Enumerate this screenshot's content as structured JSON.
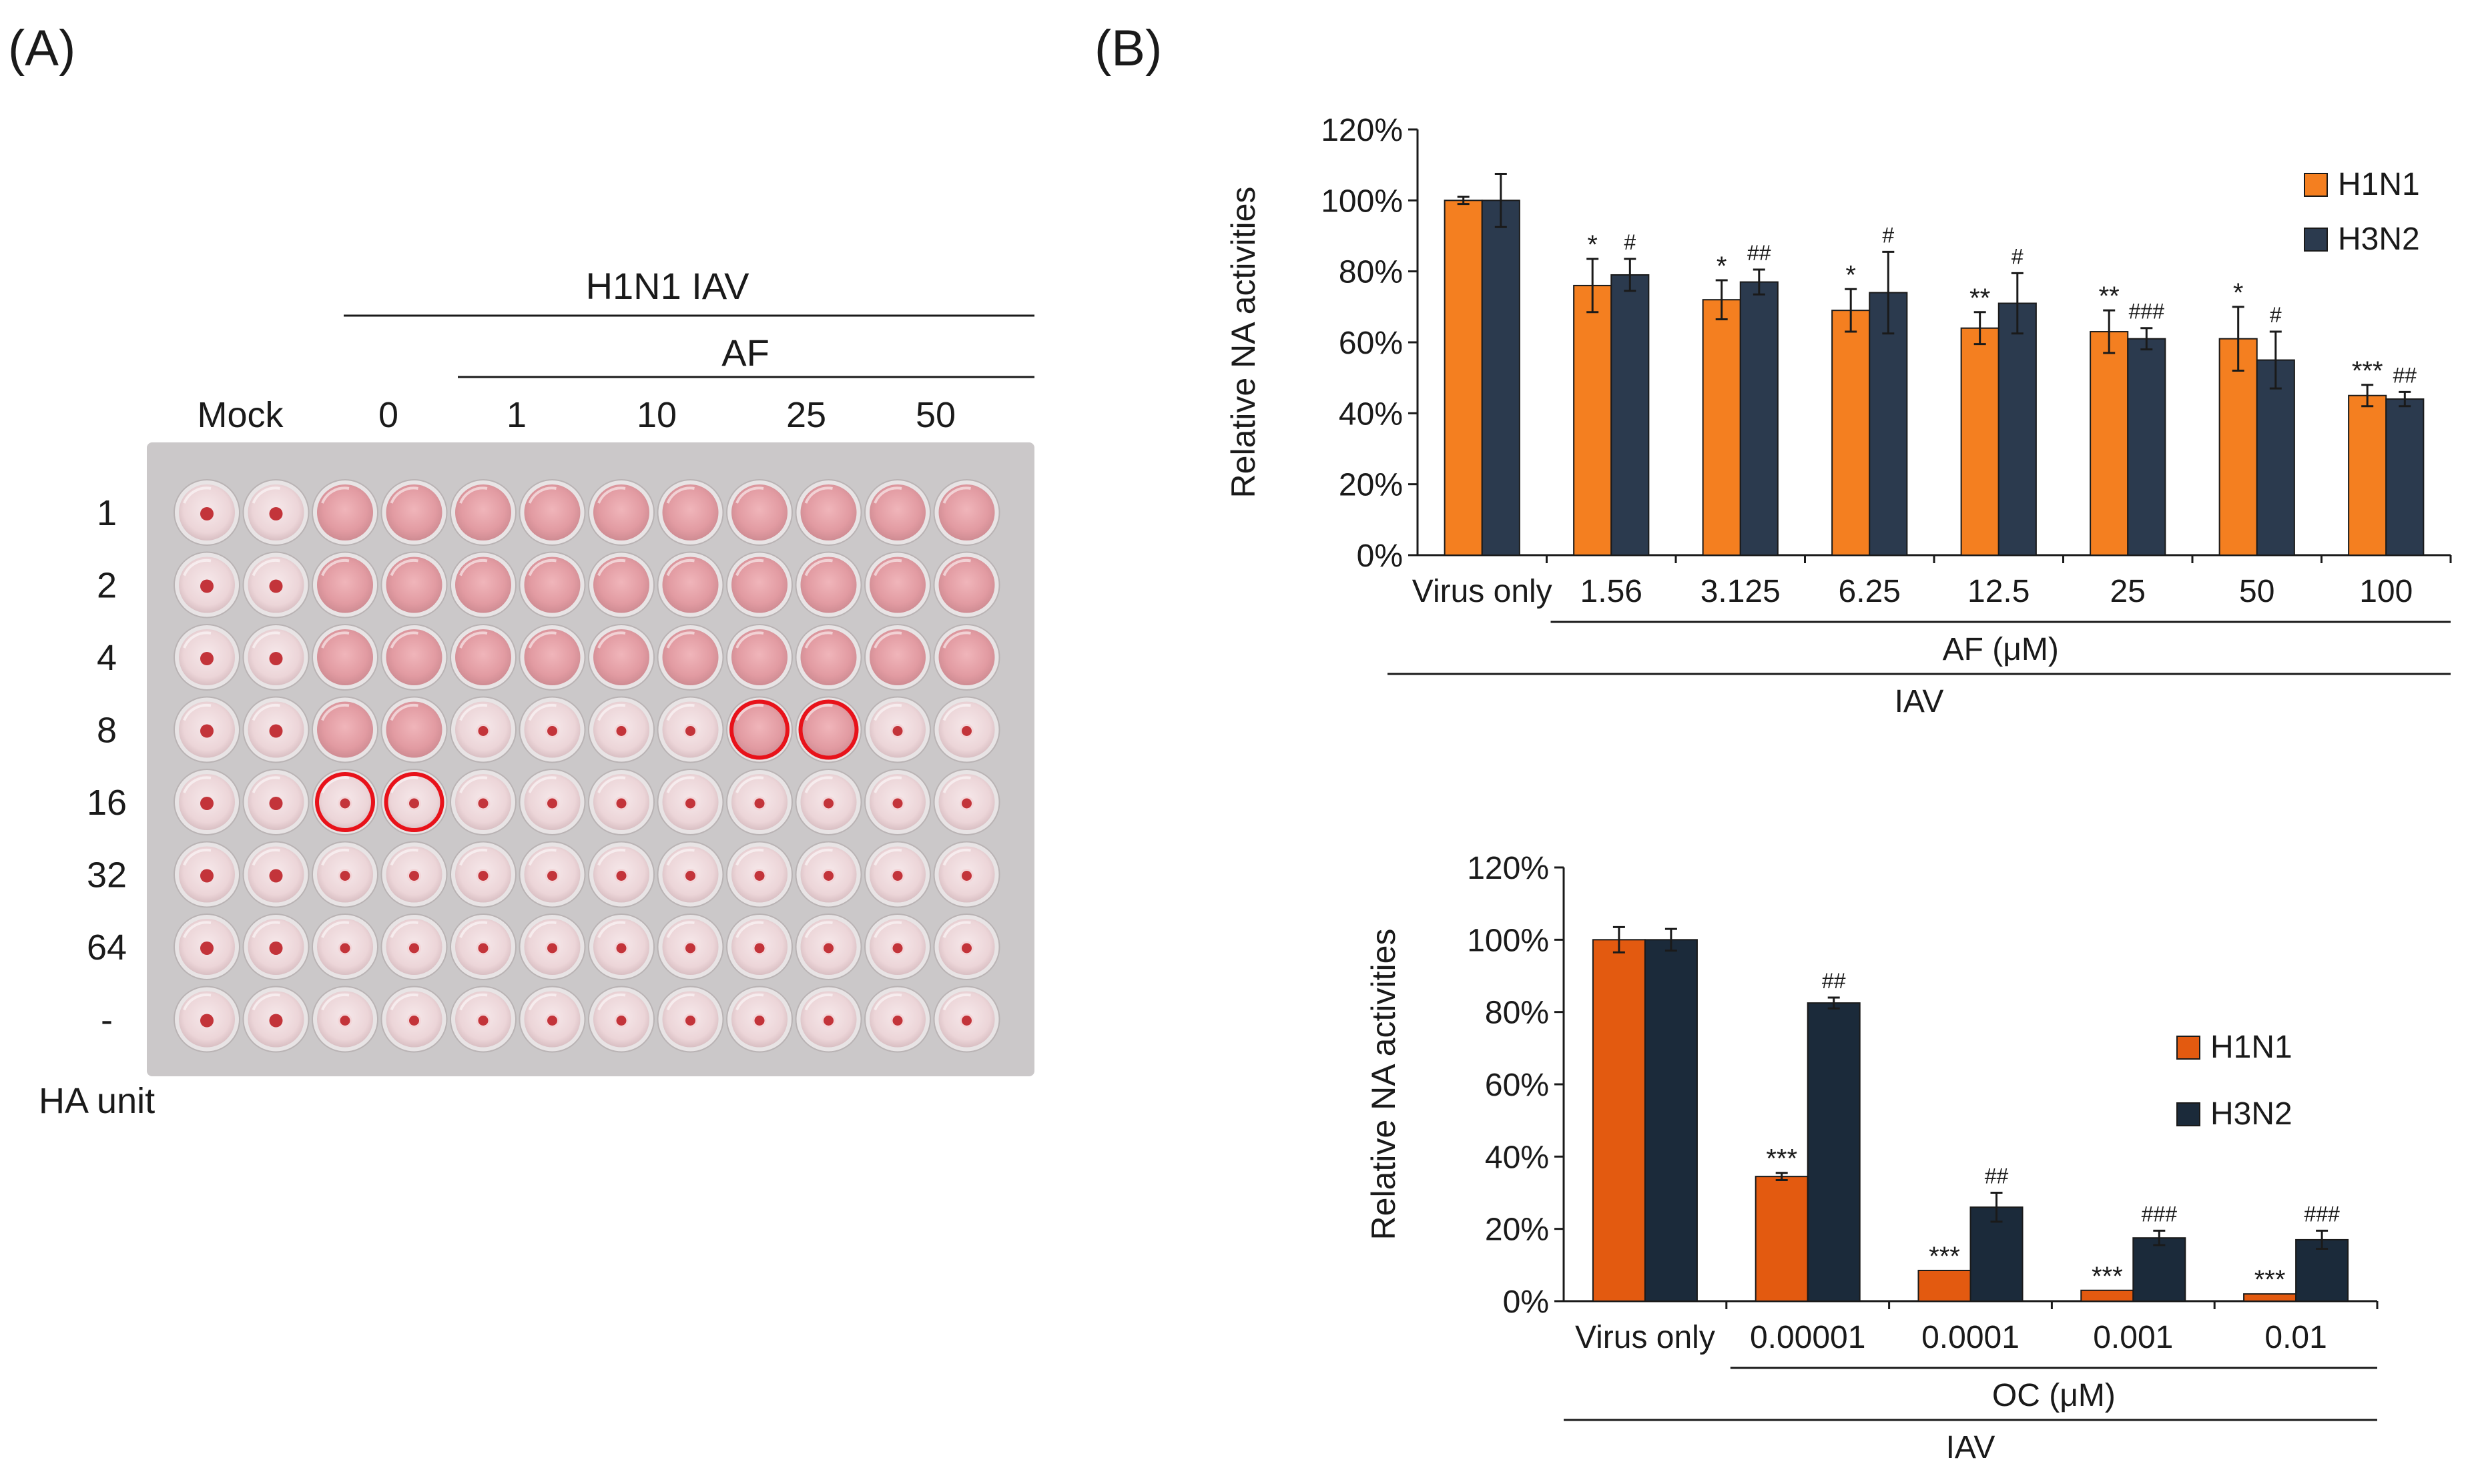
{
  "panel_a": {
    "label": "(A)",
    "group_title": "H1N1 IAV",
    "sub_group_title": "AF",
    "column_labels": [
      "Mock",
      "0",
      "1",
      "10",
      "25",
      "50"
    ],
    "row_labels": [
      "1",
      "2",
      "4",
      "8",
      "16",
      "32",
      "64",
      "-"
    ],
    "row_axis_label": "HA unit",
    "plate": {
      "rows": 8,
      "cols": 12,
      "colors": {
        "plate_bg": "#cbc8c9",
        "well_rim": "#e8e4e5",
        "pink_fill": "#e8a6ac",
        "clear_fill": "#f1dfe2",
        "button": "#c3343a",
        "highlight": "#e8121a"
      },
      "endpoint_row_per_column": [
        0,
        0,
        4,
        4,
        3,
        3,
        3,
        3,
        4,
        4,
        3,
        3
      ],
      "highlighted_wells": [
        {
          "row": 4,
          "col": 2
        },
        {
          "row": 4,
          "col": 3
        },
        {
          "row": 3,
          "col": 8
        },
        {
          "row": 3,
          "col": 9
        }
      ]
    }
  },
  "panel_b_label": "(B)",
  "chart_data": [
    {
      "type": "bar",
      "title": "",
      "ylabel": "Relative NA activities",
      "ylim": [
        0,
        120
      ],
      "yticks": [
        "0%",
        "20%",
        "40%",
        "60%",
        "80%",
        "100%",
        "120%"
      ],
      "categories": [
        "Virus only",
        "1.56",
        "3.125",
        "6.25",
        "12.5",
        "25",
        "50",
        "100"
      ],
      "group_labels": [
        {
          "text": "AF (μM)",
          "from": 1,
          "to": 7
        },
        {
          "text": "IAV",
          "from": 0,
          "to": 7
        }
      ],
      "legend": "right",
      "series": [
        {
          "name": "H1N1",
          "color": "#f47f20",
          "values": [
            100,
            76,
            72,
            69,
            64,
            63,
            61,
            45
          ],
          "errors": [
            1,
            7.5,
            5.5,
            6,
            4.5,
            6,
            9,
            3
          ],
          "marks": [
            "",
            "*",
            "*",
            "*",
            "**",
            "**",
            "*",
            "***"
          ]
        },
        {
          "name": "H3N2",
          "color": "#2b3a4e",
          "values": [
            100,
            79,
            77,
            74,
            71,
            61,
            55,
            44
          ],
          "errors": [
            7.5,
            4.5,
            3.5,
            11.5,
            8.5,
            3,
            8,
            2
          ],
          "marks": [
            "",
            "#",
            "##",
            "#",
            "#",
            "###",
            "#",
            "##"
          ]
        }
      ]
    },
    {
      "type": "bar",
      "title": "",
      "ylabel": "Relative NA activities",
      "ylim": [
        0,
        120
      ],
      "yticks": [
        "0%",
        "20%",
        "40%",
        "60%",
        "80%",
        "100%",
        "120%"
      ],
      "categories": [
        "Virus only",
        "0.00001",
        "0.0001",
        "0.001",
        "0.01"
      ],
      "group_labels": [
        {
          "text": "OC (μM)",
          "from": 1,
          "to": 4
        },
        {
          "text": "IAV",
          "from": 0,
          "to": 4
        }
      ],
      "legend": "right",
      "series": [
        {
          "name": "H1N1",
          "color": "#e35a10",
          "values": [
            100,
            34.5,
            8.5,
            3,
            2
          ],
          "errors": [
            3.5,
            1,
            0,
            0,
            0
          ],
          "marks": [
            "",
            "***",
            "***",
            "***",
            "***"
          ]
        },
        {
          "name": "H3N2",
          "color": "#1b2a3a",
          "values": [
            100,
            82.5,
            26,
            17.5,
            17
          ],
          "errors": [
            3,
            1.5,
            4,
            2,
            2.5
          ],
          "marks": [
            "",
            "##",
            "##",
            "###",
            "###"
          ]
        }
      ]
    }
  ]
}
